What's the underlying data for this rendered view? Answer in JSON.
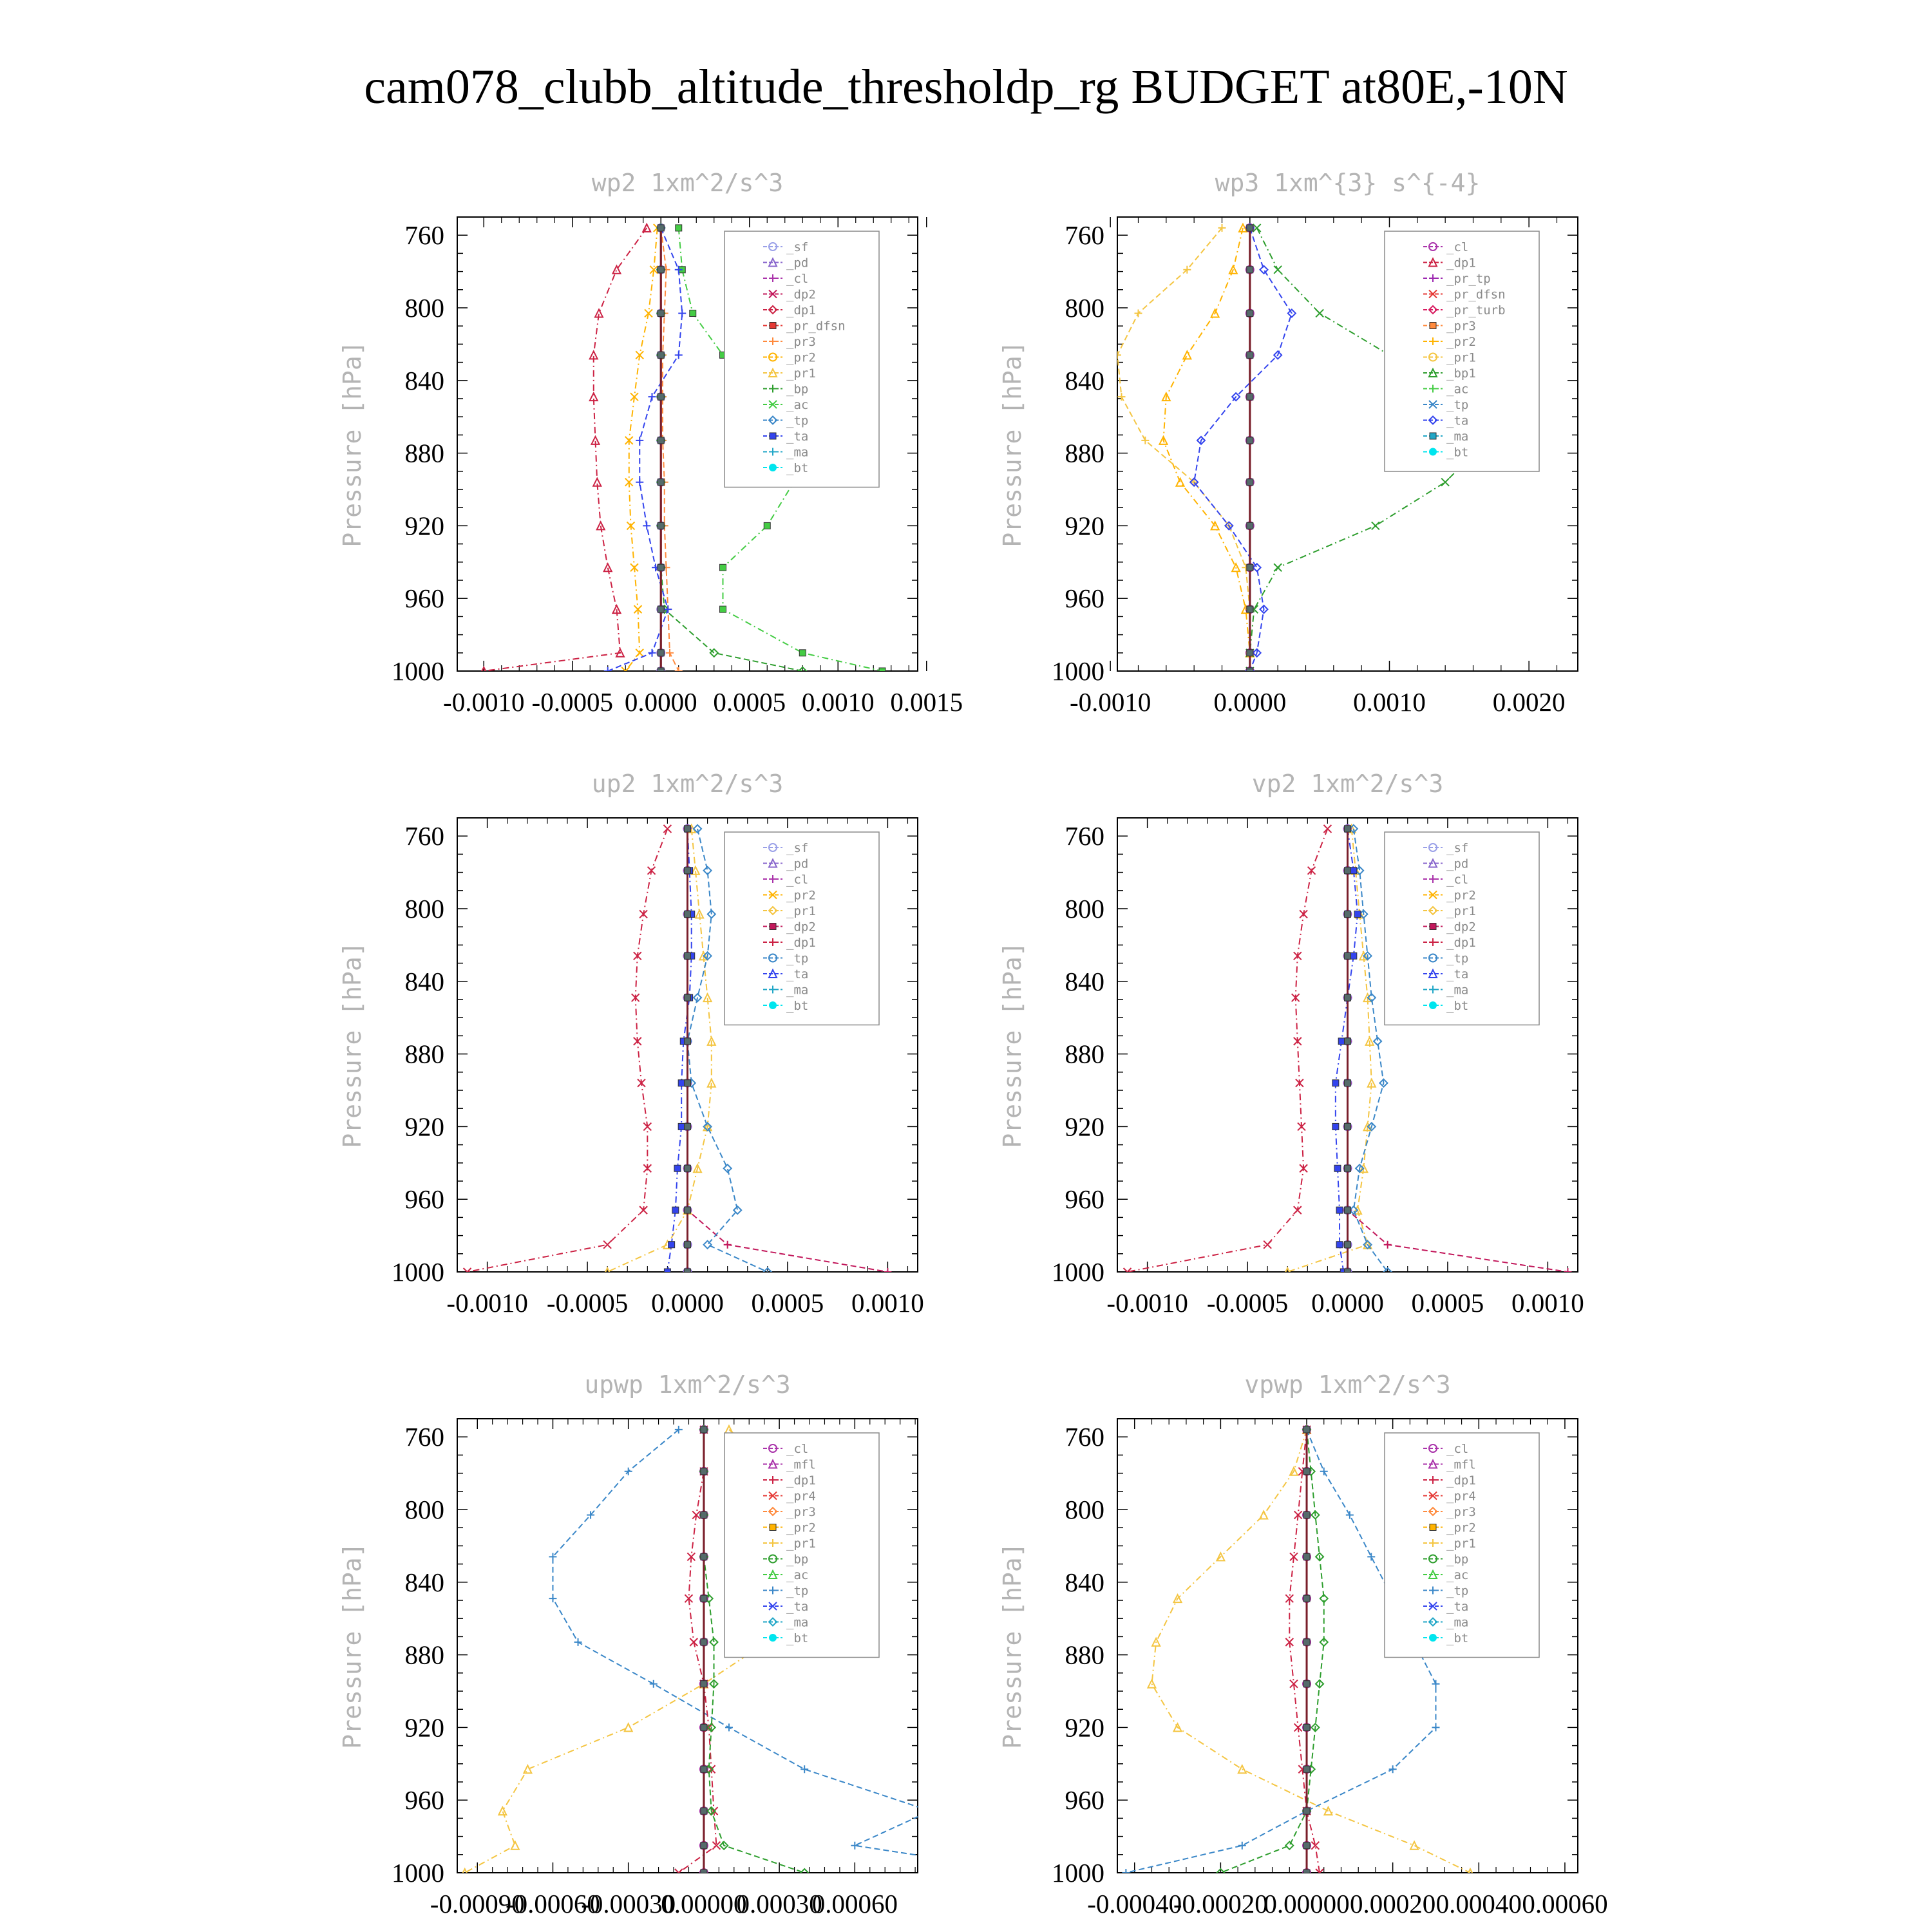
{
  "figure": {
    "title": "cam078_clubb_altitude_thresholdp_rg  BUDGET at80E,-10N"
  },
  "colors": {
    "_sf": "#9aa0e8",
    "_pd": "#8866cc",
    "_cl": "#aa33aa",
    "_dp2": "#c2185b",
    "_dp1": "#cc2244",
    "_pr_dfsn": "#e53935",
    "_pr3": "#ff8a3d",
    "_pr2": "#ffb300",
    "_pr1": "#f4c542",
    "_bp": "#2e9e2e",
    "_ac": "#44cc44",
    "_tp": "#3a87c8",
    "_ta": "#3344ee",
    "_ma": "#22a7c7",
    "_bt": "#00e5ee",
    "_pr_tp": "#9c27b0",
    "_pr_turb": "#d81b60",
    "_bp1": "#2e9e2e",
    "_mfl": "#aa33aa",
    "_pr4": "#e53935"
  },
  "chart_data": [
    {
      "type": "line",
      "title": "wp2  1xm^2/s^3",
      "ylabel": "Pressure [hPa]",
      "xlim": [
        -0.00115,
        0.00145
      ],
      "ylim": [
        1000,
        750
      ],
      "y_reversed": true,
      "xticks": [
        -0.001,
        -0.0005,
        0.0,
        0.0005,
        0.001,
        0.0015
      ],
      "xtick_labels": [
        "-0.0010",
        "-0.0005",
        "0.0000",
        "0.0005",
        "0.0010",
        "0.0015"
      ],
      "yticks": [
        760,
        800,
        840,
        880,
        920,
        960,
        1000
      ],
      "ytick_labels": [
        "760",
        "800",
        "840",
        "880",
        "920",
        "960",
        "1000"
      ],
      "legend": [
        "_sf",
        "_pd",
        "_cl",
        "_dp2",
        "_dp1",
        "_pr_dfsn",
        "_pr3",
        "_pr2",
        "_pr1",
        "_bp",
        "_ac",
        "_tp",
        "_ta",
        "_ma",
        "_bt"
      ],
      "legend_position": "top-right",
      "grid": false,
      "y": [
        756,
        779,
        803,
        826,
        849,
        873,
        896,
        920,
        943,
        966,
        990,
        1000
      ],
      "series": [
        {
          "name": "_pd",
          "values": [
            0,
            0,
            0,
            0,
            0,
            0,
            0,
            0,
            0,
            0,
            0,
            0
          ]
        },
        {
          "name": "_dp1",
          "values": [
            -8e-05,
            -0.00025,
            -0.00035,
            -0.00038,
            -0.00038,
            -0.00037,
            -0.00036,
            -0.00034,
            -0.0003,
            -0.00025,
            -0.00023,
            -0.001
          ]
        },
        {
          "name": "_pr3",
          "values": [
            0.0,
            3e-05,
            2e-05,
            1e-05,
            1e-05,
            1e-05,
            2e-05,
            2e-05,
            3e-05,
            4e-05,
            5e-05,
            0.0001
          ]
        },
        {
          "name": "_pr2",
          "values": [
            -2e-05,
            -4e-05,
            -7e-05,
            -0.00012,
            -0.00015,
            -0.00018,
            -0.00018,
            -0.00017,
            -0.00015,
            -0.00013,
            -0.00012,
            -0.0002
          ]
        },
        {
          "name": "_bp",
          "values": [
            0.0,
            0.0,
            0.0,
            0.0,
            0.0,
            0.0,
            0.0,
            0.0,
            0.0,
            2e-05,
            0.0003,
            0.0008
          ]
        },
        {
          "name": "_ac",
          "values": [
            0.0001,
            0.00012,
            0.00018,
            0.00035,
            0.00055,
            0.00072,
            0.00075,
            0.0006,
            0.00035,
            0.00035,
            0.0008,
            0.00125
          ]
        },
        {
          "name": "_ta",
          "values": [
            0.0,
            0.0001,
            0.00012,
            0.0001,
            -5e-05,
            -0.00012,
            -0.00012,
            -8e-05,
            -3e-05,
            4e-05,
            -5e-05,
            -0.0003
          ]
        },
        {
          "name": "_bt",
          "values": [
            0,
            0,
            0,
            0,
            0,
            0,
            0,
            0,
            0,
            0,
            0,
            0
          ]
        }
      ]
    },
    {
      "type": "line",
      "title": "wp3  1xm^{3} s^{-4}",
      "ylabel": "Pressure [hPa]",
      "xlim": [
        -0.00095,
        0.00235
      ],
      "ylim": [
        1000,
        750
      ],
      "y_reversed": true,
      "xticks": [
        -0.001,
        0.0,
        0.001,
        0.002
      ],
      "xtick_labels": [
        "-0.0010",
        "0.0000",
        "0.0010",
        "0.0020"
      ],
      "yticks": [
        760,
        800,
        840,
        880,
        920,
        960,
        1000
      ],
      "ytick_labels": [
        "760",
        "800",
        "840",
        "880",
        "920",
        "960",
        "1000"
      ],
      "legend": [
        "_cl",
        "_dp1",
        "_pr_tp",
        "_pr_dfsn",
        "_pr_turb",
        "_pr3",
        "_pr2",
        "_pr1",
        "_bp1",
        "_ac",
        "_tp",
        "_ta",
        "_ma",
        "_bt"
      ],
      "legend_position": "top-right",
      "grid": false,
      "y": [
        756,
        779,
        803,
        826,
        849,
        873,
        896,
        920,
        943,
        966,
        990,
        1000
      ],
      "series": [
        {
          "name": "_cl",
          "values": [
            0,
            0,
            0,
            0,
            0,
            0,
            0,
            0,
            0,
            0,
            0,
            0
          ]
        },
        {
          "name": "_pr2",
          "values": [
            -5e-05,
            -0.00012,
            -0.00025,
            -0.00045,
            -0.0006,
            -0.00062,
            -0.0005,
            -0.00025,
            -0.0001,
            -3e-05,
            0.0,
            0.0
          ]
        },
        {
          "name": "_pr1",
          "values": [
            -0.0002,
            -0.00045,
            -0.0008,
            -0.00095,
            -0.00092,
            -0.00075,
            -0.0004,
            -0.00015,
            -3e-05,
            0.0,
            0.0,
            0.0
          ]
        },
        {
          "name": "_bp1",
          "values": [
            5e-05,
            0.0002,
            0.0005,
            0.001,
            0.0015,
            0.0017,
            0.0014,
            0.0009,
            0.0002,
            3e-05,
            0.0,
            0.0
          ]
        },
        {
          "name": "_ta",
          "values": [
            0.0,
            0.0001,
            0.0003,
            0.0002,
            -0.0001,
            -0.00035,
            -0.0004,
            -0.00015,
            5e-05,
            0.0001,
            5e-05,
            0.0
          ]
        },
        {
          "name": "_bt",
          "values": [
            0,
            0,
            0,
            0,
            0,
            0,
            0,
            0,
            0,
            0,
            0,
            0
          ]
        }
      ]
    },
    {
      "type": "line",
      "title": "up2  1xm^2/s^3",
      "ylabel": "Pressure [hPa]",
      "xlim": [
        -0.00115,
        0.00115
      ],
      "ylim": [
        1000,
        750
      ],
      "y_reversed": true,
      "xticks": [
        -0.001,
        -0.0005,
        0.0,
        0.0005,
        0.001
      ],
      "xtick_labels": [
        "-0.0010",
        "-0.0005",
        "0.0000",
        "0.0005",
        "0.0010"
      ],
      "yticks": [
        760,
        800,
        840,
        880,
        920,
        960,
        1000
      ],
      "ytick_labels": [
        "760",
        "800",
        "840",
        "880",
        "920",
        "960",
        "1000"
      ],
      "legend": [
        "_sf",
        "_pd",
        "_cl",
        "_pr2",
        "_pr1",
        "_dp2",
        "_dp1",
        "_tp",
        "_ta",
        "_ma",
        "_bt"
      ],
      "legend_position": "top-right",
      "grid": false,
      "y": [
        756,
        779,
        803,
        826,
        849,
        873,
        896,
        920,
        943,
        966,
        985,
        1000
      ],
      "series": [
        {
          "name": "_pd",
          "values": [
            0,
            0,
            0,
            0,
            0,
            0,
            0,
            0,
            0,
            0,
            0,
            0
          ]
        },
        {
          "name": "_pr1",
          "values": [
            2e-05,
            4e-05,
            6e-05,
            8e-05,
            0.0001,
            0.00012,
            0.00012,
            0.0001,
            5e-05,
            0.0,
            -0.0001,
            -0.0004
          ]
        },
        {
          "name": "_dp2",
          "values": [
            0,
            0,
            0,
            0,
            0,
            0,
            0,
            0,
            0,
            0,
            0.0002,
            0.001
          ]
        },
        {
          "name": "_dp1",
          "values": [
            -0.0001,
            -0.00018,
            -0.00022,
            -0.00025,
            -0.00026,
            -0.00025,
            -0.00023,
            -0.0002,
            -0.0002,
            -0.00022,
            -0.0004,
            -0.0011
          ]
        },
        {
          "name": "_tp",
          "values": [
            5e-05,
            0.0001,
            0.00012,
            0.0001,
            5e-05,
            0.0,
            2e-05,
            0.0001,
            0.0002,
            0.00025,
            0.0001,
            0.0004
          ]
        },
        {
          "name": "_ta",
          "values": [
            0.0,
            1e-05,
            2e-05,
            2e-05,
            1e-05,
            -2e-05,
            -3e-05,
            -3e-05,
            -5e-05,
            -6e-05,
            -8e-05,
            -0.0001
          ]
        },
        {
          "name": "_bt",
          "values": [
            0,
            0,
            0,
            0,
            0,
            0,
            0,
            0,
            0,
            0,
            0,
            0
          ]
        }
      ]
    },
    {
      "type": "line",
      "title": "vp2  1xm^2/s^3",
      "ylabel": "Pressure [hPa]",
      "xlim": [
        -0.00115,
        0.00115
      ],
      "ylim": [
        1000,
        750
      ],
      "y_reversed": true,
      "xticks": [
        -0.001,
        -0.0005,
        0.0,
        0.0005,
        0.001
      ],
      "xtick_labels": [
        "-0.0010",
        "-0.0005",
        "0.0000",
        "0.0005",
        "0.0010"
      ],
      "yticks": [
        760,
        800,
        840,
        880,
        920,
        960,
        1000
      ],
      "ytick_labels": [
        "760",
        "800",
        "840",
        "880",
        "920",
        "960",
        "1000"
      ],
      "legend": [
        "_sf",
        "_pd",
        "_cl",
        "_pr2",
        "_pr1",
        "_dp2",
        "_dp1",
        "_tp",
        "_ta",
        "_ma",
        "_bt"
      ],
      "legend_position": "top-right",
      "grid": false,
      "y": [
        756,
        779,
        803,
        826,
        849,
        873,
        896,
        920,
        943,
        966,
        985,
        1000
      ],
      "series": [
        {
          "name": "_pd",
          "values": [
            0,
            0,
            0,
            0,
            0,
            0,
            0,
            0,
            0,
            0,
            0,
            0
          ]
        },
        {
          "name": "_pr1",
          "values": [
            2e-05,
            4e-05,
            6e-05,
            8e-05,
            0.0001,
            0.00011,
            0.00012,
            0.0001,
            8e-05,
            5e-05,
            0.0001,
            -0.0003
          ]
        },
        {
          "name": "_dp2",
          "values": [
            0,
            0,
            0,
            0,
            0,
            0,
            0,
            0,
            0,
            0,
            0.0002,
            0.0011
          ]
        },
        {
          "name": "_dp1",
          "values": [
            -0.0001,
            -0.00018,
            -0.00022,
            -0.00025,
            -0.00026,
            -0.00025,
            -0.00024,
            -0.00023,
            -0.00022,
            -0.00025,
            -0.0004,
            -0.0011
          ]
        },
        {
          "name": "_tp",
          "values": [
            3e-05,
            6e-05,
            8e-05,
            0.0001,
            0.00012,
            0.00015,
            0.00018,
            0.00012,
            6e-05,
            3e-05,
            0.0001,
            0.0002
          ]
        },
        {
          "name": "_ta",
          "values": [
            0.0,
            3e-05,
            5e-05,
            3e-05,
            0.0,
            -3e-05,
            -6e-05,
            -6e-05,
            -5e-05,
            -4e-05,
            -4e-05,
            -2e-05
          ]
        },
        {
          "name": "_bt",
          "values": [
            0,
            0,
            0,
            0,
            0,
            0,
            0,
            0,
            0,
            0,
            0,
            0
          ]
        }
      ]
    },
    {
      "type": "line",
      "title": "upwp  1xm^2/s^3",
      "ylabel": "Pressure [hPa]",
      "xlim": [
        -0.00098,
        0.00085
      ],
      "ylim": [
        1000,
        750
      ],
      "y_reversed": true,
      "xticks": [
        -0.0009,
        -0.0006,
        -0.0003,
        0.0,
        0.0003,
        0.0006
      ],
      "xtick_labels": [
        "-0.00090",
        "-0.00060",
        "-0.00030",
        "0.00000",
        "0.00030",
        "0.00060"
      ],
      "yticks": [
        760,
        800,
        840,
        880,
        920,
        960,
        1000
      ],
      "ytick_labels": [
        "760",
        "800",
        "840",
        "880",
        "920",
        "960",
        "1000"
      ],
      "legend": [
        "_cl",
        "_mfl",
        "_dp1",
        "_pr4",
        "_pr3",
        "_pr2",
        "_pr1",
        "_bp",
        "_ac",
        "_tp",
        "_ta",
        "_ma",
        "_bt"
      ],
      "legend_position": "top-right",
      "grid": false,
      "y": [
        756,
        779,
        803,
        826,
        849,
        873,
        896,
        920,
        943,
        966,
        985,
        1000
      ],
      "series": [
        {
          "name": "_cl",
          "values": [
            0,
            0,
            0,
            0,
            0,
            0,
            0,
            0,
            0,
            0,
            0,
            0
          ]
        },
        {
          "name": "_pr1",
          "values": [
            0.0001,
            0.0003,
            0.00045,
            0.0005,
            0.00042,
            0.00025,
            0.0,
            -0.0003,
            -0.0007,
            -0.0008,
            -0.00075,
            -0.00095
          ]
        },
        {
          "name": "_tp",
          "values": [
            -0.0001,
            -0.0003,
            -0.00045,
            -0.0006,
            -0.0006,
            -0.0005,
            -0.0002,
            0.0001,
            0.0004,
            0.0009,
            0.0006,
            0.0013
          ]
        },
        {
          "name": "_dp1",
          "values": [
            0.0,
            0.0,
            -3e-05,
            -5e-05,
            -6e-05,
            -4e-05,
            0.0,
            2e-05,
            3e-05,
            4e-05,
            5e-05,
            -0.0001
          ]
        },
        {
          "name": "_bp",
          "values": [
            0,
            0,
            0,
            0,
            2e-05,
            4e-05,
            4e-05,
            3e-05,
            2e-05,
            3e-05,
            8e-05,
            0.0004
          ]
        },
        {
          "name": "_bt",
          "values": [
            0,
            0,
            0,
            0,
            0,
            0,
            0,
            0,
            0,
            0,
            0,
            0
          ]
        }
      ]
    },
    {
      "type": "line",
      "title": "vpwp  1xm^2/s^3",
      "ylabel": "Pressure [hPa]",
      "xlim": [
        -0.00044,
        0.00063
      ],
      "ylim": [
        1000,
        750
      ],
      "y_reversed": true,
      "xticks": [
        -0.0004,
        -0.0002,
        0.0,
        0.0002,
        0.0004,
        0.0006
      ],
      "xtick_labels": [
        "-0.00040",
        "-0.00020",
        "0.00000",
        "0.00020",
        "0.00040",
        "0.00060"
      ],
      "yticks": [
        760,
        800,
        840,
        880,
        920,
        960,
        1000
      ],
      "ytick_labels": [
        "760",
        "800",
        "840",
        "880",
        "920",
        "960",
        "1000"
      ],
      "legend": [
        "_cl",
        "_mfl",
        "_dp1",
        "_pr4",
        "_pr3",
        "_pr2",
        "_pr1",
        "_bp",
        "_ac",
        "_tp",
        "_ta",
        "_ma",
        "_bt"
      ],
      "legend_position": "top-right",
      "grid": false,
      "y": [
        756,
        779,
        803,
        826,
        849,
        873,
        896,
        920,
        943,
        966,
        985,
        1000
      ],
      "series": [
        {
          "name": "_cl",
          "values": [
            0,
            0,
            0,
            0,
            0,
            0,
            0,
            0,
            0,
            0,
            0,
            0
          ]
        },
        {
          "name": "_pr1",
          "values": [
            0.0,
            -3e-05,
            -0.0001,
            -0.0002,
            -0.0003,
            -0.00035,
            -0.00036,
            -0.0003,
            -0.00015,
            5e-05,
            0.00025,
            0.00038
          ]
        },
        {
          "name": "_tp",
          "values": [
            0.0,
            4e-05,
            0.0001,
            0.00015,
            0.0002,
            0.00025,
            0.0003,
            0.0003,
            0.0002,
            0.0,
            -0.00015,
            -0.00042
          ]
        },
        {
          "name": "_dp1",
          "values": [
            0.0,
            -1e-05,
            -2e-05,
            -3e-05,
            -4e-05,
            -4e-05,
            -3e-05,
            -2e-05,
            -1e-05,
            0.0,
            2e-05,
            3e-05
          ]
        },
        {
          "name": "_bp",
          "values": [
            0.0,
            1e-05,
            2e-05,
            3e-05,
            4e-05,
            4e-05,
            3e-05,
            2e-05,
            1e-05,
            0.0,
            -4e-05,
            -0.0002
          ]
        },
        {
          "name": "_bt",
          "values": [
            0,
            0,
            0,
            0,
            0,
            0,
            0,
            0,
            0,
            0,
            0,
            0
          ]
        }
      ]
    }
  ]
}
